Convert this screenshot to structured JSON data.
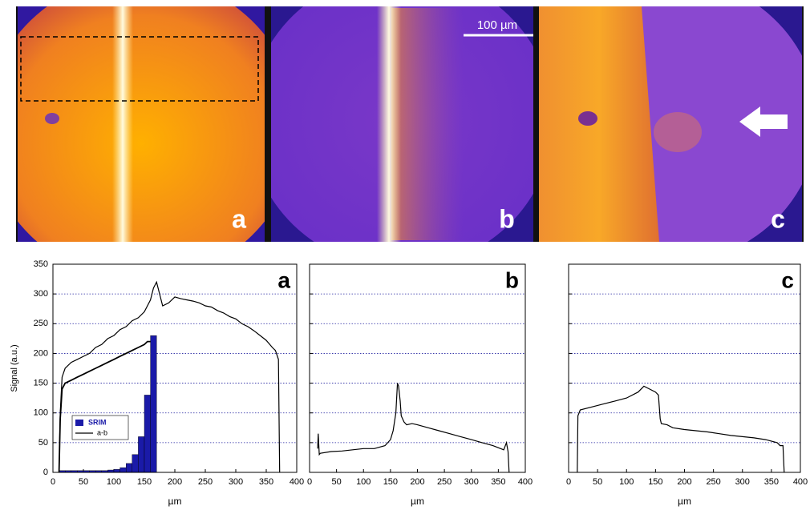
{
  "images": {
    "labels": [
      "a",
      "b",
      "c"
    ],
    "scale_bar": "100 µm"
  },
  "chart_data": [
    {
      "type": "line",
      "title": "a",
      "y_label": "Signal (a.u.)",
      "x_label": "µm",
      "xlim": [
        0,
        400
      ],
      "xticks": [
        0,
        50,
        100,
        150,
        200,
        250,
        300,
        350,
        400
      ],
      "ylim": [
        0,
        350
      ],
      "yticks": [
        0,
        50,
        100,
        150,
        200,
        250,
        300,
        350
      ],
      "grid": true,
      "series": [
        {
          "color": "#000000",
          "x": [
            10,
            12,
            15,
            20,
            30,
            40,
            50,
            60,
            70,
            80,
            90,
            100,
            110,
            120,
            130,
            140,
            150,
            160,
            165,
            170,
            175,
            180,
            190,
            200,
            210,
            220,
            230,
            240,
            250,
            260,
            270,
            280,
            290,
            300,
            310,
            320,
            330,
            340,
            350,
            360,
            365,
            370,
            372
          ],
          "values": [
            0,
            100,
            160,
            175,
            185,
            190,
            195,
            200,
            210,
            215,
            225,
            230,
            240,
            245,
            255,
            260,
            270,
            290,
            310,
            320,
            300,
            280,
            285,
            295,
            292,
            290,
            288,
            285,
            280,
            278,
            272,
            268,
            262,
            258,
            250,
            245,
            238,
            230,
            222,
            210,
            205,
            190,
            0
          ]
        },
        {
          "name": "a-b",
          "color": "#000000",
          "x": [
            10,
            12,
            15,
            20,
            30,
            40,
            50,
            60,
            70,
            80,
            90,
            100,
            110,
            120,
            130,
            140,
            150,
            155,
            160
          ],
          "values": [
            0,
            90,
            140,
            150,
            155,
            160,
            165,
            170,
            175,
            180,
            185,
            190,
            195,
            200,
            205,
            210,
            215,
            220,
            220
          ]
        }
      ],
      "histogram": {
        "name": "SRIM",
        "color": "#1a1aa8",
        "bins": [
          10,
          20,
          30,
          40,
          50,
          60,
          70,
          80,
          90,
          100,
          110,
          120,
          130,
          140,
          150,
          160,
          170
        ],
        "counts": [
          3,
          3,
          3,
          3,
          3,
          3,
          3,
          3,
          4,
          5,
          8,
          15,
          30,
          60,
          130,
          230
        ]
      }
    },
    {
      "type": "line",
      "title": "b",
      "x_label": "µm",
      "xlim": [
        0,
        400
      ],
      "xticks": [
        0,
        50,
        100,
        150,
        200,
        250,
        300,
        350,
        400
      ],
      "ylim": [
        0,
        350
      ],
      "yticks": [
        0,
        50,
        100,
        150,
        200,
        250,
        300,
        350
      ],
      "grid": true,
      "series": [
        {
          "color": "#000000",
          "x": [
            15,
            16,
            18,
            20,
            40,
            60,
            80,
            100,
            120,
            140,
            150,
            155,
            160,
            163,
            165,
            168,
            170,
            175,
            180,
            190,
            200,
            220,
            240,
            260,
            280,
            300,
            320,
            340,
            360,
            365,
            368,
            370
          ],
          "values": [
            40,
            65,
            30,
            32,
            35,
            36,
            38,
            40,
            40,
            45,
            55,
            70,
            100,
            150,
            145,
            120,
            95,
            85,
            80,
            82,
            80,
            75,
            70,
            65,
            60,
            55,
            50,
            45,
            38,
            50,
            35,
            0
          ]
        }
      ]
    },
    {
      "type": "line",
      "title": "c",
      "x_label": "µm",
      "xlim": [
        0,
        400
      ],
      "xticks": [
        0,
        50,
        100,
        150,
        200,
        250,
        300,
        350,
        400
      ],
      "ylim": [
        0,
        350
      ],
      "yticks": [
        0,
        50,
        100,
        150,
        200,
        250,
        300,
        350
      ],
      "grid": true,
      "series": [
        {
          "color": "#000000",
          "x": [
            15,
            16,
            20,
            40,
            60,
            80,
            100,
            120,
            130,
            140,
            150,
            155,
            158,
            160,
            170,
            180,
            200,
            220,
            240,
            260,
            280,
            300,
            320,
            340,
            360,
            365,
            370,
            372
          ],
          "values": [
            0,
            95,
            105,
            110,
            115,
            120,
            125,
            135,
            145,
            140,
            135,
            130,
            90,
            82,
            80,
            75,
            72,
            70,
            68,
            65,
            62,
            60,
            58,
            55,
            50,
            45,
            45,
            0
          ]
        }
      ]
    }
  ]
}
